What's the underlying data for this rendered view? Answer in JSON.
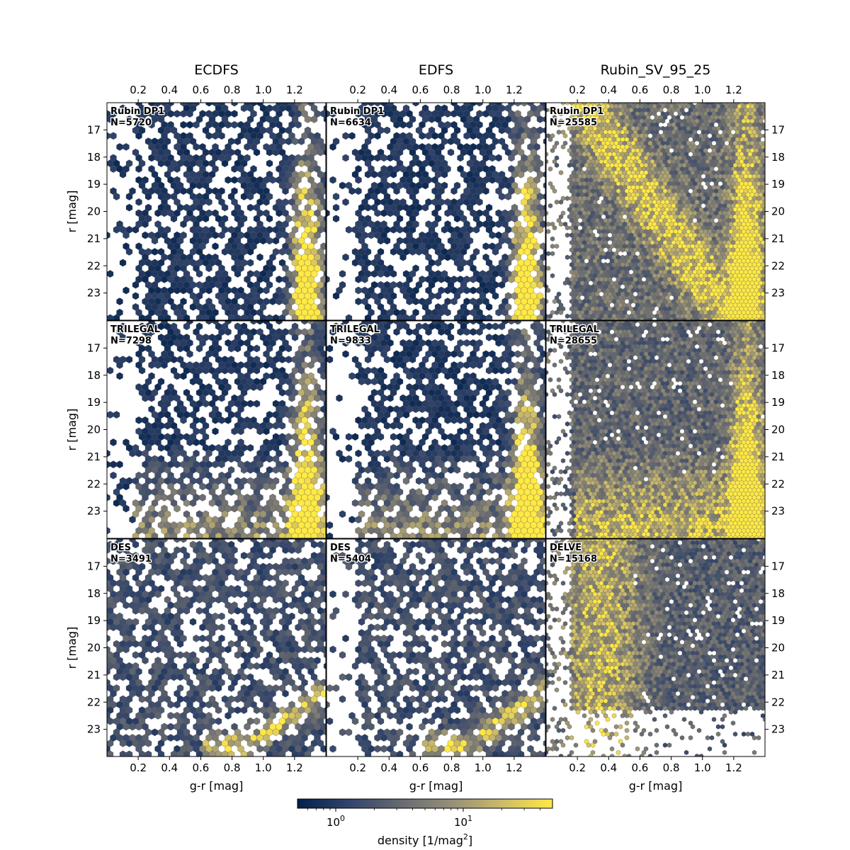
{
  "figure": {
    "column_titles": [
      "ECDFS",
      "EDFS",
      "Rubin_SV_95_25"
    ],
    "xlabel": "g-r [mag]",
    "ylabel": "r [mag]",
    "x_ticks": [
      "0.2",
      "0.4",
      "0.6",
      "0.8",
      "1.0",
      "1.2"
    ],
    "y_ticks": [
      "17",
      "18",
      "19",
      "20",
      "21",
      "22",
      "23"
    ],
    "colorbar": {
      "label": "density [1/mag²]",
      "label_base": "density [1/mag",
      "label_exp": "2",
      "label_end": "]",
      "tick_base": "10",
      "tick_exps": [
        "0",
        "1"
      ],
      "scale": "log",
      "range": [
        0.5,
        50
      ],
      "colormap": "cividis",
      "colors": [
        "#00204c",
        "#31446b",
        "#666970",
        "#958f78",
        "#cbba69",
        "#ffe945"
      ]
    }
  },
  "chart_data": {
    "type": "heatmap",
    "subtype": "hexbin color-magnitude diagrams",
    "xlabel": "g-r [mag]",
    "ylabel": "r [mag]",
    "xlim": [
      0.0,
      1.4
    ],
    "ylim": [
      24.0,
      16.0
    ],
    "y_inverted": true,
    "colorbar_range": [
      0.5,
      50
    ],
    "colorbar_scale": "log",
    "panels": [
      {
        "row": 0,
        "col": 0,
        "field": "ECDFS",
        "dataset": "Rubin DP1",
        "n_label": "N=5720",
        "n": 5720
      },
      {
        "row": 0,
        "col": 1,
        "field": "EDFS",
        "dataset": "Rubin DP1",
        "n_label": "N=6634",
        "n": 6634
      },
      {
        "row": 0,
        "col": 2,
        "field": "Rubin_SV_95_25",
        "dataset": "Rubin DP1",
        "n_label": "N=25585",
        "n": 25585
      },
      {
        "row": 1,
        "col": 0,
        "field": "ECDFS",
        "dataset": "TRILEGAL",
        "n_label": "N=7298",
        "n": 7298
      },
      {
        "row": 1,
        "col": 1,
        "field": "EDFS",
        "dataset": "TRILEGAL",
        "n_label": "N=9833",
        "n": 9833
      },
      {
        "row": 1,
        "col": 2,
        "field": "Rubin_SV_95_25",
        "dataset": "TRILEGAL",
        "n_label": "N=28655",
        "n": 28655
      },
      {
        "row": 2,
        "col": 0,
        "field": "ECDFS",
        "dataset": "DES",
        "n_label": "N=3491",
        "n": 3491
      },
      {
        "row": 2,
        "col": 1,
        "field": "EDFS",
        "dataset": "DES",
        "n_label": "N=5404",
        "n": 5404
      },
      {
        "row": 2,
        "col": 2,
        "field": "Rubin_SV_95_25",
        "dataset": "DELVE",
        "n_label": "N=15168",
        "n": 15168
      }
    ]
  }
}
